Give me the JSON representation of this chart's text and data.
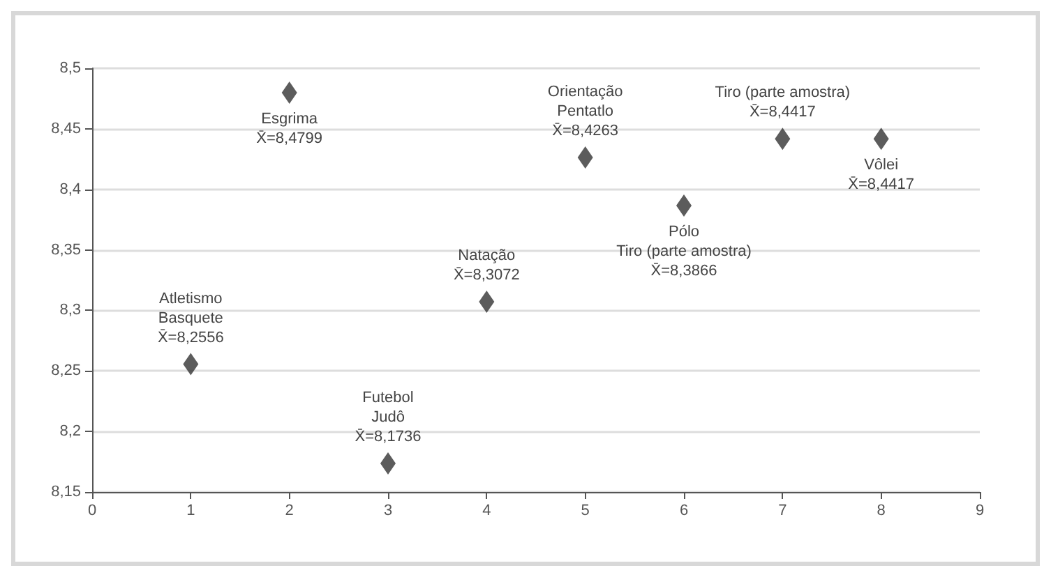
{
  "chart_data": {
    "type": "scatter",
    "x": [
      1,
      2,
      3,
      4,
      5,
      6,
      7,
      8
    ],
    "values": [
      8.2556,
      8.4799,
      8.1736,
      8.3072,
      8.4263,
      8.3866,
      8.4417,
      8.4417
    ],
    "color": "#333333",
    "marker": "diamond",
    "grid": "y",
    "xlim": [
      0,
      9
    ],
    "xticks": [
      0,
      1,
      2,
      3,
      4,
      5,
      6,
      7,
      8,
      9
    ],
    "ylim": [
      8.15,
      8.5
    ],
    "yticks": [
      {
        "value": 8.15,
        "label": "8,15"
      },
      {
        "value": 8.2,
        "label": "8,2"
      },
      {
        "value": 8.25,
        "label": "8,25"
      },
      {
        "value": 8.3,
        "label": "8,3"
      },
      {
        "value": 8.35,
        "label": "8,35"
      },
      {
        "value": 8.4,
        "label": "8,4"
      },
      {
        "value": 8.45,
        "label": "8,45"
      },
      {
        "value": 8.5,
        "label": "8,5"
      }
    ],
    "annotations": [
      {
        "text": "Atletismo\nBasquete\nX̄=8,2556",
        "x": 1,
        "y": 8.2556
      },
      {
        "text": "Esgrima\nX̄=8,4799",
        "x": 2,
        "y": 8.4799
      },
      {
        "text": "Futebol\nJudô\nX̄=8,1736",
        "x": 3,
        "y": 8.1736
      },
      {
        "text": "Natação\nX̄=8,3072",
        "x": 4,
        "y": 8.3072
      },
      {
        "text": "Orientação\nPentatlo\nX̄=8,4263",
        "x": 5,
        "y": 8.4263
      },
      {
        "text": "Pólo\nTiro (parte amostra)\nX̄=8,3866",
        "x": 6,
        "y": 8.3866
      },
      {
        "text": "Tiro (parte amostra)\nX̄=8,4417",
        "x": 7,
        "y": 8.4417
      },
      {
        "text": "Vôlei\nX̄=8,4417",
        "x": 8,
        "y": 8.4417
      }
    ]
  }
}
